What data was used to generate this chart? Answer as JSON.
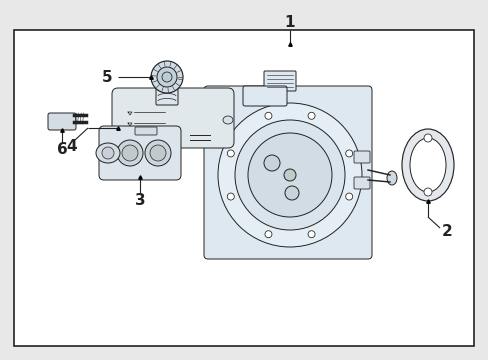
{
  "background_color": "#e8e8e8",
  "box_bg": "#ffffff",
  "inner_bg": "#dde8f0",
  "line_color": "#222222",
  "label_1": "1",
  "label_2": "2",
  "label_3": "3",
  "label_4": "4",
  "label_5": "5",
  "label_6": "6",
  "fig_width": 4.89,
  "fig_height": 3.6,
  "dpi": 100,
  "lw": 0.7
}
